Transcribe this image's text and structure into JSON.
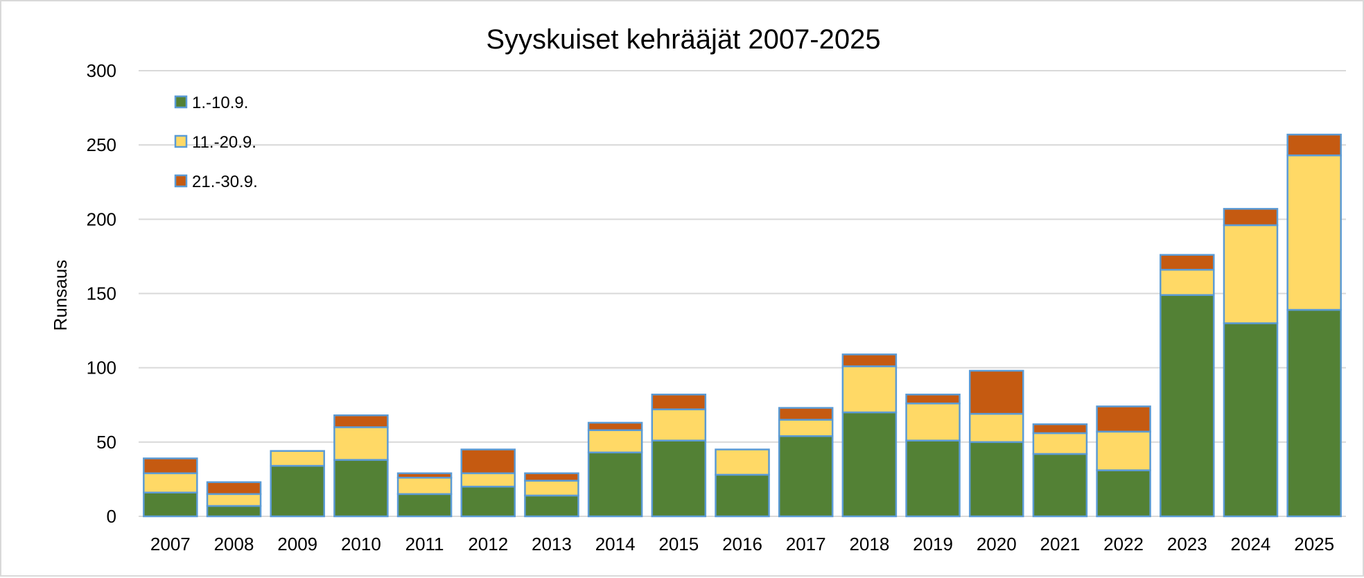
{
  "chart_data": {
    "type": "bar",
    "stacked": true,
    "title": "Syyskuiset kehrääjät 2007-2025",
    "xlabel": "",
    "ylabel": "Runsaus",
    "ylim": [
      0,
      300
    ],
    "yticks": [
      "0",
      "50",
      "100",
      "150",
      "200",
      "250",
      "300"
    ],
    "grid": true,
    "legend_position": "top-left",
    "categories": [
      "2007",
      "2008",
      "2009",
      "2010",
      "2011",
      "2012",
      "2013",
      "2014",
      "2015",
      "2016",
      "2017",
      "2018",
      "2019",
      "2020",
      "2021",
      "2022",
      "2023",
      "2024",
      "2025"
    ],
    "series": [
      {
        "name": "1.-10.9.",
        "color": "#538135",
        "values": [
          16,
          7,
          34,
          38,
          15,
          20,
          14,
          43,
          51,
          28,
          54,
          70,
          51,
          50,
          42,
          31,
          149,
          130,
          139
        ]
      },
      {
        "name": "11.-20.9.",
        "color": "#FFD966",
        "values": [
          13,
          8,
          10,
          22,
          11,
          9,
          10,
          15,
          21,
          17,
          11,
          31,
          25,
          19,
          14,
          26,
          17,
          66,
          104
        ]
      },
      {
        "name": "21.-30.9.",
        "color": "#C55A11",
        "values": [
          10,
          8,
          0,
          8,
          3,
          16,
          5,
          5,
          10,
          0,
          8,
          8,
          6,
          29,
          6,
          17,
          10,
          11,
          14
        ]
      }
    ],
    "bar_edge_color": "#5B9BD5",
    "gridline_color": "#D9D9D9"
  }
}
